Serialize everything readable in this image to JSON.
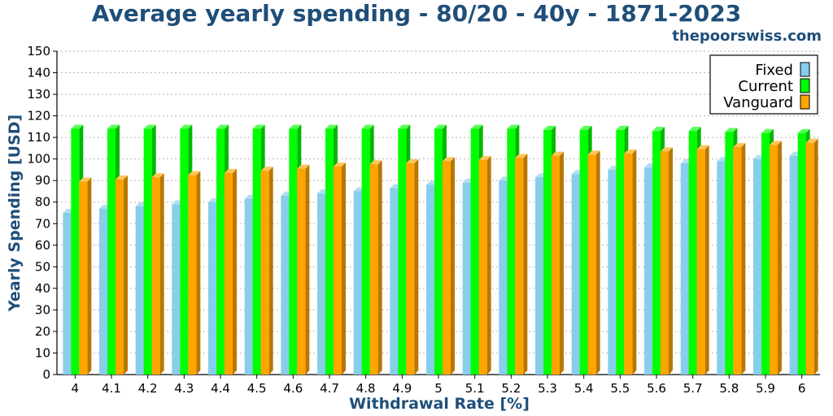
{
  "chart_data": {
    "type": "bar",
    "title": "Average yearly spending - 80/20 - 40y - 1871-2023",
    "source": "thepoorswiss.com",
    "xlabel": "Withdrawal Rate [%]",
    "ylabel": "Yearly Spending [USD]",
    "ylim": [
      0,
      150
    ],
    "ytick_step": 10,
    "grid": true,
    "legend_position": "top-right",
    "categories": [
      "4",
      "4.1",
      "4.2",
      "4.3",
      "4.4",
      "4.5",
      "4.6",
      "4.7",
      "4.8",
      "4.9",
      "5",
      "5.1",
      "5.2",
      "5.3",
      "5.4",
      "5.5",
      "5.6",
      "5.7",
      "5.8",
      "5.9",
      "6"
    ],
    "series": [
      {
        "name": "Fixed",
        "color": "#87ceeb",
        "values": [
          75,
          77,
          78,
          79,
          80,
          81.5,
          83,
          84,
          85,
          86.5,
          88,
          89,
          90,
          91.5,
          93,
          95,
          96,
          98,
          99,
          100,
          101.5
        ]
      },
      {
        "name": "Current",
        "color": "#00ff00",
        "values": [
          114,
          114,
          114,
          114,
          114,
          114,
          114,
          114,
          114,
          114,
          114,
          114,
          114,
          113.5,
          113.5,
          113.5,
          113,
          113,
          112.5,
          112,
          112
        ]
      },
      {
        "name": "Vanguard",
        "color": "#ffa500",
        "values": [
          89.5,
          90.5,
          91.5,
          92.5,
          93.5,
          94.5,
          95.5,
          96.5,
          97.5,
          98,
          99,
          99.5,
          100.5,
          101.5,
          102,
          102.5,
          103.5,
          104.5,
          105.5,
          106.5,
          107.5
        ]
      }
    ]
  }
}
